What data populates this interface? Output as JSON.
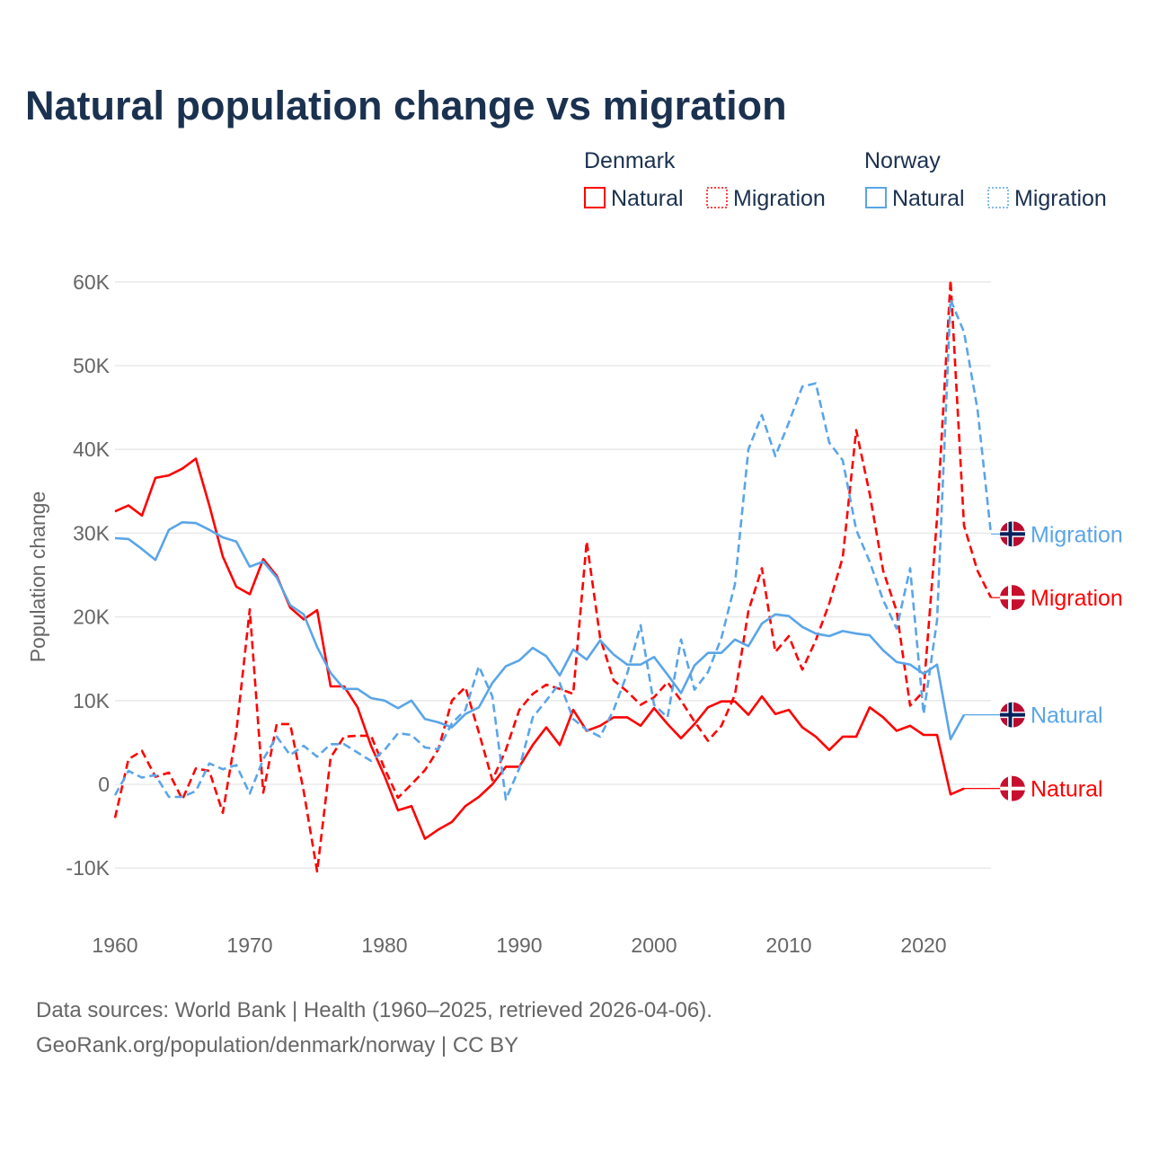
{
  "chart_data": {
    "type": "line",
    "title": "Natural population change vs migration",
    "ylabel": "Population change",
    "xlabel": "",
    "ylim": [
      -10000,
      60000
    ],
    "xlim": [
      1960,
      2025
    ],
    "y_ticks": [
      {
        "v": 60000,
        "label": "60K"
      },
      {
        "v": 50000,
        "label": "50K"
      },
      {
        "v": 40000,
        "label": "40K"
      },
      {
        "v": 30000,
        "label": "30K"
      },
      {
        "v": 20000,
        "label": "20K"
      },
      {
        "v": 10000,
        "label": "10K"
      },
      {
        "v": 0,
        "label": "0"
      },
      {
        "v": -10000,
        "label": "-10K"
      }
    ],
    "x_ticks": [
      {
        "v": 1960,
        "label": "1960"
      },
      {
        "v": 1970,
        "label": "1970"
      },
      {
        "v": 1980,
        "label": "1980"
      },
      {
        "v": 1990,
        "label": "1990"
      },
      {
        "v": 2000,
        "label": "2000"
      },
      {
        "v": 2010,
        "label": "2010"
      },
      {
        "v": 2020,
        "label": "2020"
      }
    ],
    "grid": true,
    "legend": {
      "placement": "top-right",
      "groups": [
        {
          "country": "Denmark",
          "items": [
            "Natural",
            "Migration"
          ]
        },
        {
          "country": "Norway",
          "items": [
            "Natural",
            "Migration"
          ]
        }
      ]
    },
    "series": [
      {
        "id": "dk-natural",
        "country": "Denmark",
        "name": "Natural",
        "color": "#ff0000",
        "dashed": false,
        "start_year": 1960,
        "values": [
          32600,
          33300,
          32100,
          36600,
          36900,
          37700,
          38900,
          33300,
          27200,
          23600,
          22700,
          26900,
          24900,
          21100,
          19700,
          20800,
          11700,
          11700,
          9200,
          4600,
          1000,
          -3100,
          -2600,
          -6500,
          -5400,
          -4500,
          -2600,
          -1500,
          0,
          2100,
          2100,
          4700,
          6800,
          4700,
          8900,
          6400,
          7000,
          8000,
          8000,
          7000,
          9100,
          7200,
          5500,
          7200,
          9200,
          9900,
          9900,
          8300,
          10500,
          8400,
          8900,
          6800,
          5700,
          4100,
          5700,
          5700,
          9200,
          8000,
          6400,
          7000,
          5900,
          5900,
          -1200,
          -500
        ]
      },
      {
        "id": "dk-migration",
        "country": "Denmark",
        "name": "Migration",
        "color": "#ff0000",
        "dashed": true,
        "start_year": 1960,
        "values": [
          -4000,
          3000,
          4000,
          900,
          1400,
          -1800,
          1900,
          1600,
          -3400,
          6200,
          20900,
          -1000,
          7200,
          7200,
          -800,
          -10400,
          3200,
          5700,
          5800,
          5800,
          1900,
          -1600,
          0,
          1700,
          4200,
          10000,
          11600,
          6200,
          500,
          4100,
          8900,
          10800,
          11900,
          11400,
          10800,
          29000,
          17500,
          12400,
          11100,
          9500,
          10400,
          12200,
          10000,
          7500,
          5200,
          7000,
          10700,
          20700,
          25800,
          15800,
          17700,
          13700,
          17200,
          21600,
          27100,
          42300,
          34700,
          25500,
          20700,
          9400,
          11100,
          31800,
          60200,
          30900,
          25500,
          22300
        ]
      },
      {
        "id": "no-natural",
        "country": "Norway",
        "name": "Natural",
        "color": "#5aa5e8",
        "dashed": false,
        "start_year": 1960,
        "values": [
          29400,
          29300,
          28100,
          26800,
          30400,
          31300,
          31200,
          30400,
          29500,
          29000,
          26000,
          26600,
          24700,
          21400,
          20300,
          16400,
          13300,
          11400,
          11400,
          10300,
          10000,
          9100,
          10000,
          7800,
          7400,
          6800,
          8400,
          9200,
          12100,
          14100,
          14800,
          16300,
          15300,
          13000,
          16100,
          14900,
          17200,
          15500,
          14300,
          14300,
          15200,
          13100,
          10900,
          14200,
          15700,
          15700,
          17300,
          16500,
          19200,
          20300,
          20100,
          18800,
          18000,
          17700,
          18300,
          18000,
          17800,
          16000,
          14600,
          14300,
          13200,
          14300,
          5400,
          8300
        ]
      },
      {
        "id": "no-migration",
        "country": "Norway",
        "name": "Migration",
        "color": "#5aa5e8",
        "dashed": true,
        "start_year": 1960,
        "values": [
          -1300,
          1600,
          800,
          1100,
          -1500,
          -1500,
          -800,
          2500,
          1800,
          2300,
          -1100,
          3000,
          5700,
          3500,
          4600,
          3300,
          4800,
          4800,
          3800,
          2800,
          4100,
          6100,
          5900,
          4400,
          4200,
          7300,
          8900,
          14100,
          10500,
          -1800,
          1900,
          8000,
          10000,
          12100,
          7800,
          6500,
          5700,
          8900,
          13200,
          19000,
          9500,
          8000,
          17300,
          11300,
          13400,
          17500,
          23900,
          40000,
          44100,
          39200,
          43200,
          47500,
          47900,
          40800,
          38700,
          30400,
          26600,
          22000,
          18600,
          25800,
          8400,
          19600,
          57900,
          54000,
          44800,
          29900
        ]
      }
    ],
    "end_labels": [
      {
        "series": "no-migration",
        "text": "Migration",
        "flag": "norway"
      },
      {
        "series": "dk-migration",
        "text": "Migration",
        "flag": "denmark"
      },
      {
        "series": "no-natural",
        "text": "Natural",
        "flag": "norway"
      },
      {
        "series": "dk-natural",
        "text": "Natural",
        "flag": "denmark"
      }
    ]
  },
  "footer": {
    "line1": "Data sources: World Bank | Health (1960–2025, retrieved 2026-04-06).",
    "line2": "GeoRank.org/population/denmark/norway | CC BY"
  }
}
